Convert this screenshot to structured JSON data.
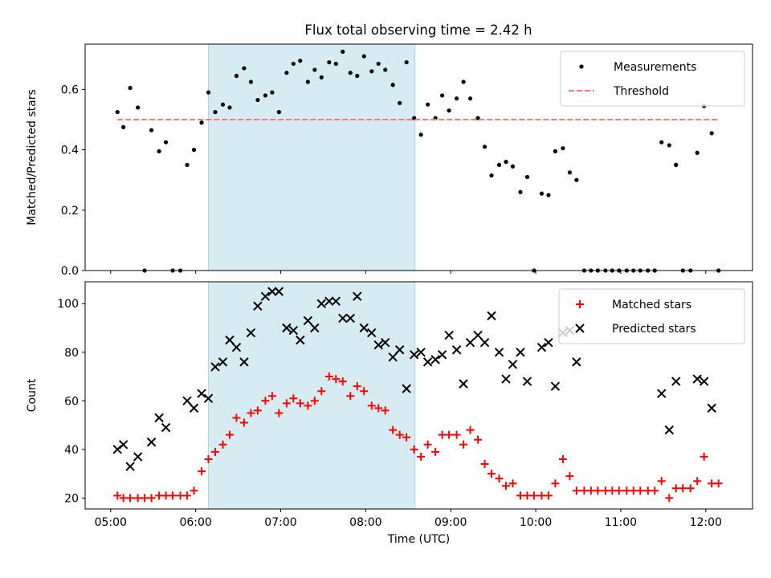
{
  "figure": {
    "title": "Flux total observing time = 2.42 h",
    "shaded_span_hours": [
      6.15,
      8.58
    ],
    "shade_color": "#add8e6"
  },
  "chart_data": [
    {
      "type": "scatter",
      "ylabel": "Matched/Predicted stars",
      "xlim": [
        4.7,
        12.55
      ],
      "ylim": [
        0,
        0.75
      ],
      "yticks": [
        0.0,
        0.2,
        0.4,
        0.6
      ],
      "ytick_labels": [
        "0.0",
        "0.2",
        "0.4",
        "0.6"
      ],
      "xtick_labels_shown": false,
      "legend": "top-right",
      "series": [
        {
          "name": "Measurements",
          "marker": "dot",
          "color": "#000000",
          "x": [
            5.08,
            5.15,
            5.23,
            5.32,
            5.4,
            5.48,
            5.57,
            5.65,
            5.73,
            5.82,
            5.9,
            5.98,
            6.07,
            6.15,
            6.23,
            6.32,
            6.4,
            6.48,
            6.57,
            6.65,
            6.73,
            6.82,
            6.9,
            6.98,
            7.07,
            7.15,
            7.23,
            7.32,
            7.4,
            7.48,
            7.57,
            7.65,
            7.73,
            7.82,
            7.9,
            7.98,
            8.07,
            8.15,
            8.23,
            8.32,
            8.4,
            8.48,
            8.57,
            8.65,
            8.73,
            8.82,
            8.9,
            8.98,
            9.07,
            9.15,
            9.23,
            9.32,
            9.4,
            9.48,
            9.57,
            9.65,
            9.73,
            9.82,
            9.9,
            9.98,
            10.07,
            10.15,
            10.23,
            10.32,
            10.4,
            10.48,
            10.57,
            10.65,
            10.73,
            10.82,
            10.9,
            10.98,
            11.07,
            11.15,
            11.23,
            11.32,
            11.4,
            11.48,
            11.57,
            11.65,
            11.73,
            11.82,
            11.9,
            11.98,
            12.07,
            12.15
          ],
          "y": [
            0.525,
            0.475,
            0.605,
            0.54,
            0.0,
            0.465,
            0.395,
            0.425,
            0.0,
            0.0,
            0.35,
            0.4,
            0.49,
            0.59,
            0.525,
            0.55,
            0.54,
            0.645,
            0.67,
            0.625,
            0.565,
            0.58,
            0.59,
            0.525,
            0.655,
            0.685,
            0.695,
            0.625,
            0.665,
            0.64,
            0.69,
            0.685,
            0.725,
            0.655,
            0.645,
            0.71,
            0.66,
            0.685,
            0.665,
            0.615,
            0.555,
            0.69,
            0.505,
            0.45,
            0.55,
            0.505,
            0.58,
            0.53,
            0.57,
            0.625,
            0.57,
            0.505,
            0.41,
            0.315,
            0.35,
            0.36,
            0.345,
            0.26,
            0.31,
            0.0,
            0.255,
            0.25,
            0.395,
            0.405,
            0.325,
            0.3,
            0.0,
            0.0,
            0.0,
            0.0,
            0.0,
            0.0,
            0.0,
            0.0,
            0.0,
            0.0,
            0.0,
            0.425,
            0.415,
            0.35,
            0.0,
            0.0,
            0.39,
            0.545,
            0.455,
            0.0
          ]
        },
        {
          "name": "Threshold",
          "marker": "dashed-line",
          "color": "#ff7b7b",
          "x": [
            5.08,
            12.15
          ],
          "y": [
            0.5,
            0.5
          ]
        }
      ]
    },
    {
      "type": "scatter",
      "ylabel": "Count",
      "xlabel": "Time (UTC)",
      "xlim": [
        4.7,
        12.55
      ],
      "ylim": [
        15.5,
        109
      ],
      "yticks": [
        20,
        40,
        60,
        80,
        100
      ],
      "ytick_labels": [
        "20",
        "40",
        "60",
        "80",
        "100"
      ],
      "xticks": [
        5,
        6,
        7,
        8,
        9,
        10,
        11,
        12
      ],
      "xtick_labels": [
        "05:00",
        "06:00",
        "07:00",
        "08:00",
        "09:00",
        "10:00",
        "11:00",
        "12:00"
      ],
      "legend": "top-right",
      "series": [
        {
          "name": "Matched stars",
          "marker": "plus",
          "color": "#ff0000",
          "x": [
            5.08,
            5.15,
            5.23,
            5.32,
            5.4,
            5.48,
            5.57,
            5.65,
            5.73,
            5.82,
            5.9,
            5.98,
            6.07,
            6.15,
            6.23,
            6.32,
            6.4,
            6.48,
            6.57,
            6.65,
            6.73,
            6.82,
            6.9,
            6.98,
            7.07,
            7.15,
            7.23,
            7.32,
            7.4,
            7.48,
            7.57,
            7.65,
            7.73,
            7.82,
            7.9,
            7.98,
            8.07,
            8.15,
            8.23,
            8.32,
            8.4,
            8.48,
            8.57,
            8.65,
            8.73,
            8.82,
            8.9,
            8.98,
            9.07,
            9.15,
            9.23,
            9.32,
            9.4,
            9.48,
            9.57,
            9.65,
            9.73,
            9.82,
            9.9,
            9.98,
            10.07,
            10.15,
            10.23,
            10.32,
            10.4,
            10.48,
            10.57,
            10.65,
            10.73,
            10.82,
            10.9,
            10.98,
            11.07,
            11.15,
            11.23,
            11.32,
            11.4,
            11.48,
            11.57,
            11.65,
            11.73,
            11.82,
            11.9,
            11.98,
            12.07,
            12.15
          ],
          "y": [
            21,
            20,
            20,
            20,
            20,
            20,
            21,
            21,
            21,
            21,
            21,
            23,
            31,
            36,
            39,
            42,
            46,
            53,
            51,
            55,
            56,
            60,
            62,
            55,
            59,
            61,
            59,
            58,
            60,
            64,
            70,
            69,
            68,
            62,
            66,
            64,
            58,
            57,
            56,
            48,
            46,
            45,
            40,
            37,
            42,
            39,
            46,
            46,
            46,
            42,
            48,
            44,
            34,
            30,
            28,
            25,
            26,
            21,
            21,
            21,
            21,
            21,
            26,
            36,
            29,
            23,
            23,
            23,
            23,
            23,
            23,
            23,
            23,
            23,
            23,
            23,
            23,
            27,
            20,
            24,
            24,
            24,
            27,
            37,
            26,
            26
          ]
        },
        {
          "name": "Predicted stars",
          "marker": "x",
          "color": "#000000",
          "x": [
            5.08,
            5.15,
            5.23,
            5.32,
            5.4,
            5.48,
            5.57,
            5.65,
            5.73,
            5.82,
            5.9,
            5.98,
            6.07,
            6.15,
            6.23,
            6.32,
            6.4,
            6.48,
            6.57,
            6.65,
            6.73,
            6.82,
            6.9,
            6.98,
            7.07,
            7.15,
            7.23,
            7.32,
            7.4,
            7.48,
            7.57,
            7.65,
            7.73,
            7.82,
            7.9,
            7.98,
            8.07,
            8.15,
            8.23,
            8.32,
            8.4,
            8.48,
            8.57,
            8.65,
            8.73,
            8.82,
            8.9,
            8.98,
            9.07,
            9.15,
            9.23,
            9.32,
            9.4,
            9.48,
            9.57,
            9.65,
            9.73,
            9.82,
            9.9,
            10.07,
            10.15,
            10.23,
            10.32,
            10.4,
            10.48,
            11.48,
            11.57,
            11.65,
            11.9,
            11.98,
            12.07
          ],
          "y": [
            40,
            42,
            33,
            37,
            null,
            43,
            53,
            49,
            null,
            null,
            60,
            57,
            63,
            61,
            74,
            76,
            85,
            82,
            76,
            88,
            99,
            103,
            105,
            105,
            90,
            89,
            85,
            93,
            90,
            100,
            101,
            101,
            94,
            94,
            103,
            90,
            88,
            83,
            84,
            78,
            81,
            65,
            79,
            80,
            76,
            77,
            79,
            87,
            81,
            67,
            84,
            87,
            84,
            95,
            80,
            69,
            75,
            80,
            68,
            82,
            84,
            66,
            88,
            89,
            76,
            63,
            48,
            68,
            69,
            68,
            57
          ]
        }
      ]
    }
  ]
}
